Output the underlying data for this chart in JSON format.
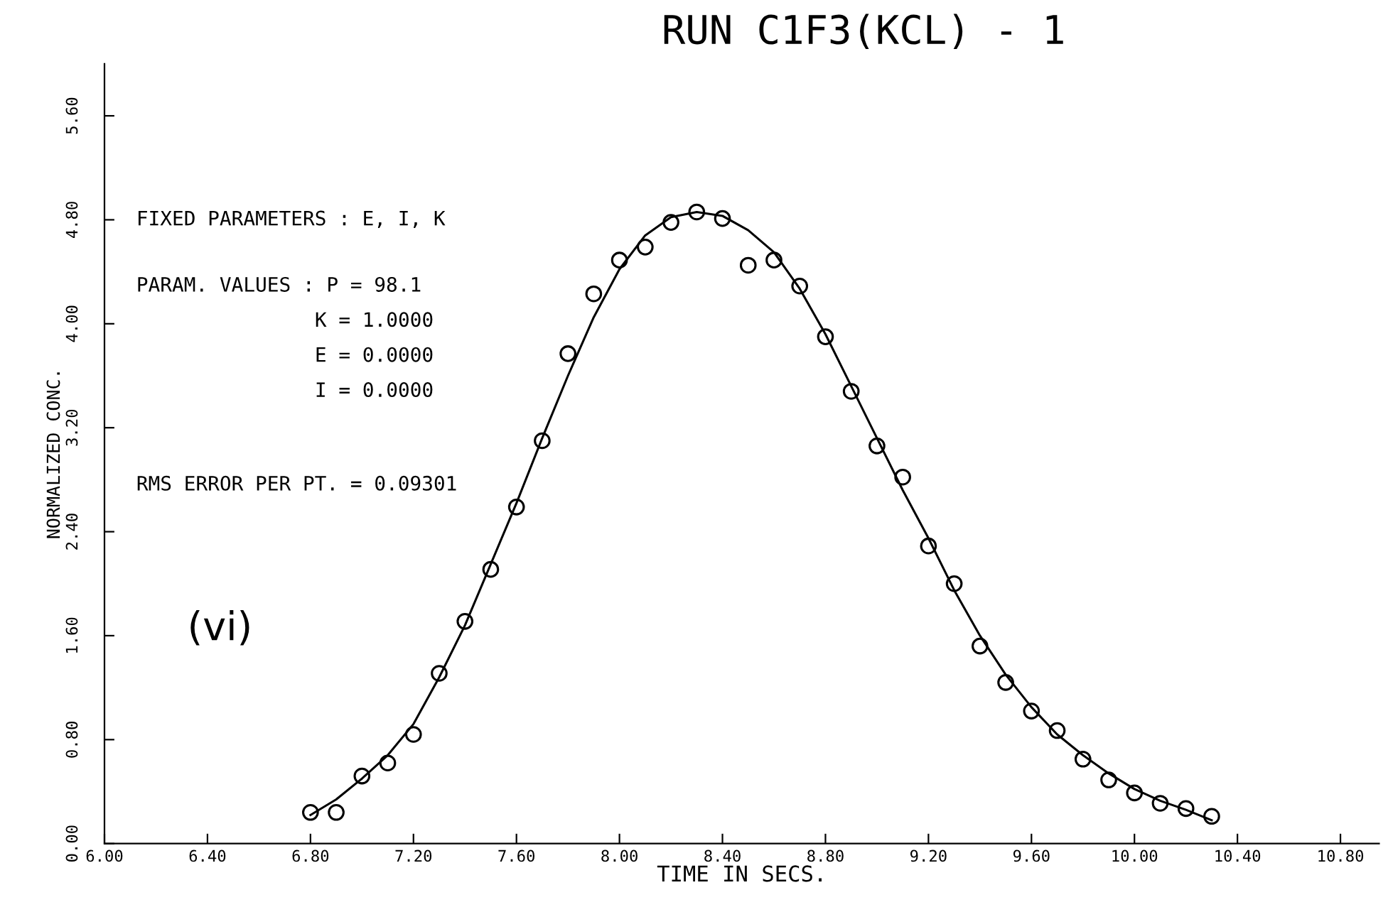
{
  "chart_data": {
    "type": "scatter",
    "title": "RUN C1F3(KCL) - 1",
    "xlabel": "TIME IN SECS.",
    "ylabel": "NORMALIZED CONC.",
    "annotations": [
      "FIXED PARAMETERS : E, I, K",
      "PARAM. VALUES : P = 98.1",
      "K = 1.0000",
      "E = 0.0000",
      "I = 0.0000",
      "RMS ERROR PER PT. = 0.09301",
      "(vi)"
    ],
    "grid": false,
    "series": [
      {
        "color": "#000000",
        "marker": "circle",
        "x": [
          6.8,
          6.9,
          7.0,
          7.1,
          7.2,
          7.3,
          7.4,
          7.5,
          7.6,
          7.7,
          7.8,
          7.9,
          8.0,
          8.1,
          8.2,
          8.3,
          8.4,
          8.5,
          8.6,
          8.7,
          8.8,
          8.9,
          9.0,
          9.1,
          9.2,
          9.3,
          9.4,
          9.5,
          9.6,
          9.7,
          9.8,
          9.9,
          10.0,
          10.1,
          10.2,
          10.3
        ],
        "values": [
          0.24,
          0.24,
          0.52,
          0.62,
          0.84,
          1.31,
          1.71,
          2.11,
          2.59,
          3.1,
          3.77,
          4.23,
          4.49,
          4.59,
          4.78,
          4.86,
          4.81,
          4.45,
          4.49,
          4.29,
          3.9,
          3.48,
          3.06,
          2.82,
          2.29,
          2.0,
          1.52,
          1.24,
          1.02,
          0.87,
          0.65,
          0.49,
          0.39,
          0.31,
          0.27,
          0.21
        ]
      },
      {
        "type": "line",
        "color": "#000000",
        "line_style": "solid",
        "x": [
          6.8,
          6.9,
          7.0,
          7.1,
          7.2,
          7.3,
          7.4,
          7.5,
          7.6,
          7.7,
          7.8,
          7.9,
          8.0,
          8.1,
          8.2,
          8.3,
          8.4,
          8.5,
          8.6,
          8.7,
          8.8,
          8.9,
          9.0,
          9.1,
          9.2,
          9.3,
          9.4,
          9.5,
          9.6,
          9.7,
          9.8,
          9.9,
          10.0,
          10.1,
          10.2,
          10.3
        ],
        "values": [
          0.22,
          0.34,
          0.5,
          0.68,
          0.92,
          1.28,
          1.68,
          2.15,
          2.62,
          3.12,
          3.6,
          4.05,
          4.42,
          4.68,
          4.82,
          4.86,
          4.83,
          4.72,
          4.55,
          4.27,
          3.92,
          3.52,
          3.12,
          2.72,
          2.35,
          1.95,
          1.6,
          1.3,
          1.05,
          0.84,
          0.68,
          0.54,
          0.42,
          0.33,
          0.26,
          0.18
        ]
      }
    ],
    "xlim": [
      6.0,
      10.95
    ],
    "ylim": [
      0.0,
      6.0
    ],
    "xticks": [
      {
        "value": 6.0,
        "label": "6.00"
      },
      {
        "value": 6.4,
        "label": "6.40"
      },
      {
        "value": 6.8,
        "label": "6.80"
      },
      {
        "value": 7.2,
        "label": "7.20"
      },
      {
        "value": 7.6,
        "label": "7.60"
      },
      {
        "value": 8.0,
        "label": "8.00"
      },
      {
        "value": 8.4,
        "label": "8.40"
      },
      {
        "value": 8.8,
        "label": "8.80"
      },
      {
        "value": 9.2,
        "label": "9.20"
      },
      {
        "value": 9.6,
        "label": "9.60"
      },
      {
        "value": 10.0,
        "label": "10.00"
      },
      {
        "value": 10.4,
        "label": "10.40"
      },
      {
        "value": 10.8,
        "label": "10.80"
      }
    ],
    "yticks": [
      {
        "value": 0.0,
        "label": "0.00"
      },
      {
        "value": 0.8,
        "label": "0.80"
      },
      {
        "value": 1.6,
        "label": "1.60"
      },
      {
        "value": 2.4,
        "label": "2.40"
      },
      {
        "value": 3.2,
        "label": "3.20"
      },
      {
        "value": 4.0,
        "label": "4.00"
      },
      {
        "value": 4.8,
        "label": "4.80"
      },
      {
        "value": 5.6,
        "label": "5.60"
      }
    ]
  }
}
